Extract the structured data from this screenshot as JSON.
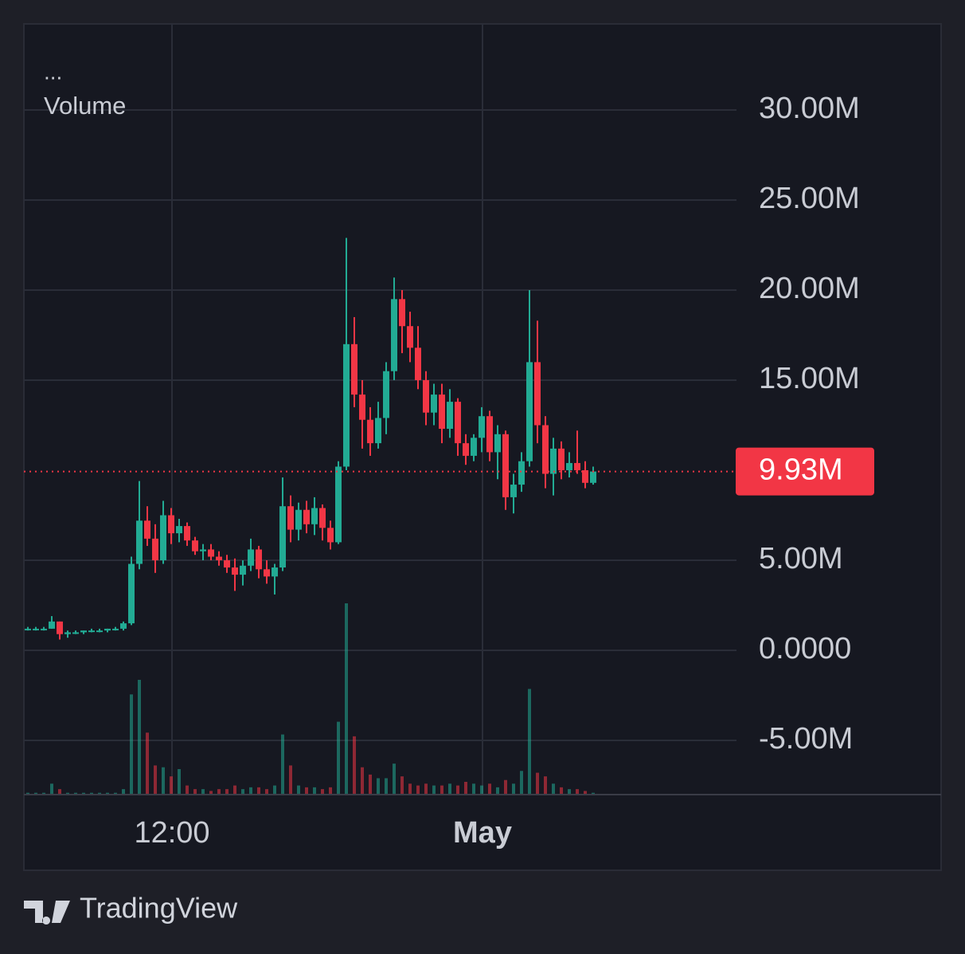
{
  "chart_data": {
    "type": "candlestick",
    "menu": "...",
    "indicator": "Volume",
    "watermark": "TradingView",
    "up_color": "#22ab94",
    "down_color": "#f23645",
    "ylim": [
      -8.01,
      34.78
    ],
    "yticks": [
      {
        "value": 30,
        "label": "30.00M"
      },
      {
        "value": 25,
        "label": "25.00M"
      },
      {
        "value": 20,
        "label": "20.00M"
      },
      {
        "value": 15,
        "label": "15.00M"
      },
      {
        "value": 5,
        "label": "5.00M"
      },
      {
        "value": 0,
        "label": "0.0000"
      },
      {
        "value": -5,
        "label": "-5.00M"
      }
    ],
    "xlim": [
      -0.5,
      89
    ],
    "xticks": [
      {
        "value": 18.1,
        "label": "12:00"
      },
      {
        "value": 57.1,
        "label": "May"
      }
    ],
    "grid": true,
    "last_price": {
      "value": 9.93,
      "label": "9.93M"
    },
    "candles": [
      [
        1.2,
        1.3,
        1.1,
        1.2
      ],
      [
        1.2,
        1.3,
        1.1,
        1.2
      ],
      [
        1.2,
        1.3,
        1.1,
        1.2
      ],
      [
        1.2,
        1.9,
        1.2,
        1.6
      ],
      [
        1.6,
        1.6,
        0.6,
        0.9
      ],
      [
        0.9,
        1.1,
        0.7,
        1.0
      ],
      [
        1.0,
        1.1,
        0.9,
        1.0
      ],
      [
        1.0,
        1.1,
        0.9,
        1.1
      ],
      [
        1.1,
        1.2,
        1.0,
        1.1
      ],
      [
        1.1,
        1.2,
        1.0,
        1.1
      ],
      [
        1.1,
        1.2,
        1.0,
        1.2
      ],
      [
        1.2,
        1.3,
        1.1,
        1.2
      ],
      [
        1.2,
        1.6,
        1.1,
        1.5
      ],
      [
        1.5,
        5.2,
        1.4,
        4.8
      ],
      [
        4.8,
        9.4,
        4.5,
        7.2
      ],
      [
        7.2,
        8.0,
        5.8,
        6.2
      ],
      [
        6.2,
        7.0,
        4.3,
        5.0
      ],
      [
        5.0,
        8.3,
        4.8,
        7.5
      ],
      [
        7.5,
        7.9,
        5.9,
        6.5
      ],
      [
        6.5,
        7.3,
        6.0,
        6.9
      ],
      [
        6.9,
        7.1,
        5.8,
        6.1
      ],
      [
        6.1,
        6.3,
        5.3,
        5.5
      ],
      [
        5.5,
        5.9,
        5.0,
        5.6
      ],
      [
        5.6,
        5.9,
        5.0,
        5.2
      ],
      [
        5.2,
        5.5,
        4.7,
        5.0
      ],
      [
        5.0,
        5.3,
        4.3,
        4.6
      ],
      [
        4.6,
        5.1,
        3.3,
        4.2
      ],
      [
        4.2,
        5.0,
        3.6,
        4.7
      ],
      [
        4.7,
        6.2,
        4.4,
        5.6
      ],
      [
        5.6,
        5.8,
        4.0,
        4.5
      ],
      [
        4.5,
        5.0,
        3.7,
        4.1
      ],
      [
        4.1,
        4.8,
        3.1,
        4.6
      ],
      [
        4.6,
        9.6,
        4.4,
        8.0
      ],
      [
        8.0,
        8.6,
        6.0,
        6.7
      ],
      [
        6.7,
        8.2,
        6.1,
        7.8
      ],
      [
        7.8,
        8.3,
        6.5,
        7.0
      ],
      [
        7.0,
        8.5,
        6.4,
        7.9
      ],
      [
        7.9,
        8.1,
        6.1,
        6.8
      ],
      [
        6.8,
        7.2,
        5.6,
        6.0
      ],
      [
        6.0,
        10.5,
        5.9,
        10.2
      ],
      [
        10.2,
        22.9,
        10.0,
        17.0
      ],
      [
        17.0,
        18.5,
        13.5,
        14.2
      ],
      [
        14.2,
        15.0,
        11.2,
        12.8
      ],
      [
        12.8,
        13.5,
        10.8,
        11.5
      ],
      [
        11.5,
        13.8,
        11.2,
        12.9
      ],
      [
        12.9,
        16.0,
        12.0,
        15.5
      ],
      [
        15.5,
        20.7,
        15.0,
        19.5
      ],
      [
        19.5,
        20.0,
        16.5,
        18.0
      ],
      [
        18.0,
        18.8,
        16.0,
        16.8
      ],
      [
        16.8,
        18.0,
        14.5,
        15.0
      ],
      [
        15.0,
        15.5,
        12.5,
        13.2
      ],
      [
        13.2,
        14.8,
        12.5,
        14.2
      ],
      [
        14.2,
        14.8,
        11.5,
        12.3
      ],
      [
        12.3,
        14.5,
        11.8,
        13.8
      ],
      [
        13.8,
        14.0,
        10.8,
        11.5
      ],
      [
        11.5,
        12.0,
        10.3,
        10.8
      ],
      [
        10.8,
        12.0,
        10.5,
        11.8
      ],
      [
        11.8,
        13.5,
        11.0,
        13.0
      ],
      [
        13.0,
        13.3,
        10.5,
        11.0
      ],
      [
        11.0,
        12.5,
        9.5,
        12.0
      ],
      [
        12.0,
        12.2,
        7.8,
        8.5
      ],
      [
        8.5,
        9.8,
        7.6,
        9.2
      ],
      [
        9.2,
        11.0,
        8.8,
        10.5
      ],
      [
        10.5,
        20.0,
        10.2,
        16.0
      ],
      [
        16.0,
        18.3,
        11.5,
        12.5
      ],
      [
        12.5,
        13.0,
        9.0,
        9.8
      ],
      [
        9.8,
        11.8,
        8.6,
        11.2
      ],
      [
        11.2,
        11.6,
        9.5,
        10.0
      ],
      [
        10.0,
        11.0,
        9.6,
        10.4
      ],
      [
        10.4,
        12.2,
        9.8,
        10.0
      ],
      [
        10.0,
        10.5,
        9.0,
        9.3
      ],
      [
        9.3,
        10.2,
        9.2,
        9.93
      ]
    ],
    "volume": [
      0.1,
      0.1,
      0.1,
      0.6,
      0.3,
      0.1,
      0.1,
      0.1,
      0.1,
      0.1,
      0.1,
      0.1,
      0.3,
      5.5,
      6.3,
      3.4,
      1.6,
      1.5,
      1.0,
      1.4,
      0.5,
      0.3,
      0.3,
      0.2,
      0.3,
      0.3,
      0.5,
      0.3,
      0.4,
      0.4,
      0.3,
      0.5,
      3.3,
      1.6,
      0.5,
      0.4,
      0.4,
      0.3,
      0.4,
      4.0,
      10.5,
      3.2,
      1.5,
      1.1,
      0.9,
      0.9,
      1.7,
      1.0,
      0.6,
      0.5,
      0.6,
      0.5,
      0.5,
      0.6,
      0.5,
      0.7,
      0.6,
      0.5,
      0.6,
      0.4,
      0.8,
      0.6,
      1.3,
      5.8,
      1.2,
      1.0,
      0.6,
      0.4,
      0.3,
      0.3,
      0.2,
      0.1
    ]
  }
}
